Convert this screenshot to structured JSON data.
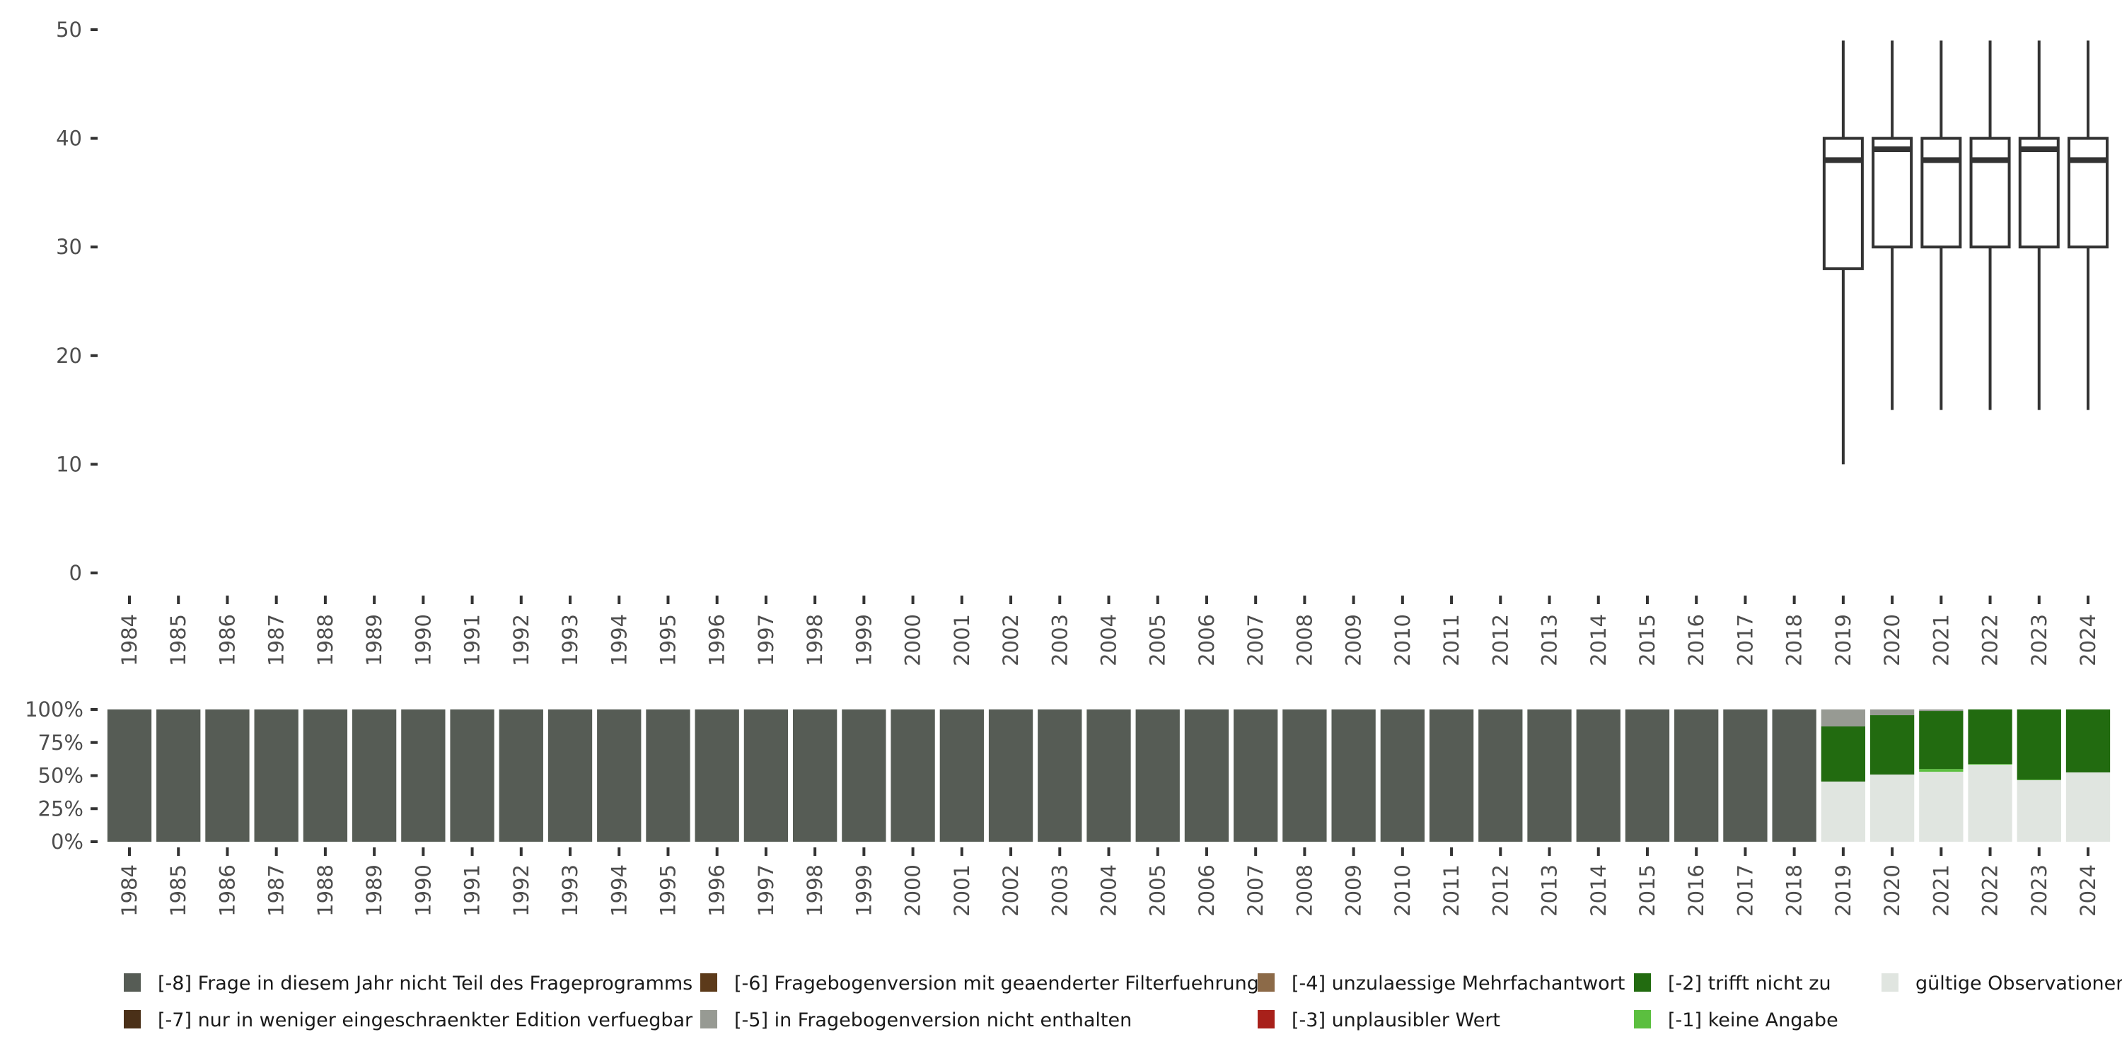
{
  "chart_data": [
    {
      "type": "boxplot",
      "title": "",
      "xlabel": "",
      "ylabel": "",
      "ylim": [
        0,
        50
      ],
      "yticks": [
        "0",
        "10",
        "20",
        "30",
        "40",
        "50"
      ],
      "grid": false,
      "categories": [
        "1984",
        "1985",
        "1986",
        "1987",
        "1988",
        "1989",
        "1990",
        "1991",
        "1992",
        "1993",
        "1994",
        "1995",
        "1996",
        "1997",
        "1998",
        "1999",
        "2000",
        "2001",
        "2002",
        "2003",
        "2004",
        "2005",
        "2006",
        "2007",
        "2008",
        "2009",
        "2010",
        "2011",
        "2012",
        "2013",
        "2014",
        "2015",
        "2016",
        "2017",
        "2018",
        "2019",
        "2020",
        "2021",
        "2022",
        "2023",
        "2024"
      ],
      "boxes": [
        {
          "year": "2019",
          "whisker_low": 10,
          "q1": 28,
          "median": 38,
          "q3": 40,
          "whisker_high": 49
        },
        {
          "year": "2020",
          "whisker_low": 15,
          "q1": 30,
          "median": 39,
          "q3": 40,
          "whisker_high": 49
        },
        {
          "year": "2021",
          "whisker_low": 15,
          "q1": 30,
          "median": 38,
          "q3": 40,
          "whisker_high": 49
        },
        {
          "year": "2022",
          "whisker_low": 15,
          "q1": 30,
          "median": 38,
          "q3": 40,
          "whisker_high": 49
        },
        {
          "year": "2023",
          "whisker_low": 15,
          "q1": 30,
          "median": 39,
          "q3": 40,
          "whisker_high": 49
        },
        {
          "year": "2024",
          "whisker_low": 15,
          "q1": 30,
          "median": 38,
          "q3": 40,
          "whisker_high": 49
        }
      ]
    },
    {
      "type": "bar",
      "stacked": true,
      "ylim": [
        0,
        100
      ],
      "yticks": [
        "0%",
        "25%",
        "50%",
        "75%",
        "100%"
      ],
      "categories": [
        "1984",
        "1985",
        "1986",
        "1987",
        "1988",
        "1989",
        "1990",
        "1991",
        "1992",
        "1993",
        "1994",
        "1995",
        "1996",
        "1997",
        "1998",
        "1999",
        "2000",
        "2001",
        "2002",
        "2003",
        "2004",
        "2005",
        "2006",
        "2007",
        "2008",
        "2009",
        "2010",
        "2011",
        "2012",
        "2013",
        "2014",
        "2015",
        "2016",
        "2017",
        "2018",
        "2019",
        "2020",
        "2021",
        "2022",
        "2023",
        "2024"
      ],
      "series": [
        {
          "key": "valid",
          "name": "gültige Observationen",
          "color": "#e0e5e0",
          "values": [
            0,
            0,
            0,
            0,
            0,
            0,
            0,
            0,
            0,
            0,
            0,
            0,
            0,
            0,
            0,
            0,
            0,
            0,
            0,
            0,
            0,
            0,
            0,
            0,
            0,
            0,
            0,
            0,
            0,
            0,
            0,
            0,
            0,
            0,
            0,
            45.5,
            50.8,
            52.9,
            58.3,
            46.5,
            52.4
          ]
        },
        {
          "key": "m1",
          "name": "[-1] keine Angabe",
          "color": "#5bbf3f",
          "values": [
            0,
            0,
            0,
            0,
            0,
            0,
            0,
            0,
            0,
            0,
            0,
            0,
            0,
            0,
            0,
            0,
            0,
            0,
            0,
            0,
            0,
            0,
            0,
            0,
            0,
            0,
            0,
            0,
            0,
            0,
            0,
            0,
            0,
            0,
            0,
            0,
            0,
            2.1,
            0.5,
            0.4,
            0
          ]
        },
        {
          "key": "m2",
          "name": "[-2] trifft nicht zu",
          "color": "#226b10",
          "values": [
            0,
            0,
            0,
            0,
            0,
            0,
            0,
            0,
            0,
            0,
            0,
            0,
            0,
            0,
            0,
            0,
            0,
            0,
            0,
            0,
            0,
            0,
            0,
            0,
            0,
            0,
            0,
            0,
            0,
            0,
            0,
            0,
            0,
            0,
            0,
            41.7,
            44.9,
            43.9,
            41.2,
            53.1,
            47.6
          ]
        },
        {
          "key": "m3",
          "name": "[-3] unplausibler Wert",
          "color": "#a8201a",
          "values": [
            0,
            0,
            0,
            0,
            0,
            0,
            0,
            0,
            0,
            0,
            0,
            0,
            0,
            0,
            0,
            0,
            0,
            0,
            0,
            0,
            0,
            0,
            0,
            0,
            0,
            0,
            0,
            0,
            0,
            0,
            0,
            0,
            0,
            0,
            0,
            0,
            0,
            0,
            0,
            0,
            0
          ]
        },
        {
          "key": "m4",
          "name": "[-4] unzulaessige Mehrfachantwort",
          "color": "#8c6a48",
          "values": [
            0,
            0,
            0,
            0,
            0,
            0,
            0,
            0,
            0,
            0,
            0,
            0,
            0,
            0,
            0,
            0,
            0,
            0,
            0,
            0,
            0,
            0,
            0,
            0,
            0,
            0,
            0,
            0,
            0,
            0,
            0,
            0,
            0,
            0,
            0,
            0,
            0,
            0,
            0,
            0,
            0
          ]
        },
        {
          "key": "m5",
          "name": "[-5] in Fragebogenversion nicht enthalten",
          "color": "#979a93",
          "values": [
            0,
            0,
            0,
            0,
            0,
            0,
            0,
            0,
            0,
            0,
            0,
            0,
            0,
            0,
            0,
            0,
            0,
            0,
            0,
            0,
            0,
            0,
            0,
            0,
            0,
            0,
            0,
            0,
            0,
            0,
            0,
            0,
            0,
            0,
            0,
            12.8,
            4.3,
            1.1,
            0,
            0,
            0
          ]
        },
        {
          "key": "m6",
          "name": "[-6] Fragebogenversion mit geaenderter Filterfuehrung",
          "color": "#5c3a1a",
          "values": [
            0,
            0,
            0,
            0,
            0,
            0,
            0,
            0,
            0,
            0,
            0,
            0,
            0,
            0,
            0,
            0,
            0,
            0,
            0,
            0,
            0,
            0,
            0,
            0,
            0,
            0,
            0,
            0,
            0,
            0,
            0,
            0,
            0,
            0,
            0,
            0,
            0,
            0,
            0,
            0,
            0
          ]
        },
        {
          "key": "m7",
          "name": "[-7] nur in weniger eingeschraenkter Edition verfuegbar",
          "color": "#4a3018",
          "values": [
            0,
            0,
            0,
            0,
            0,
            0,
            0,
            0,
            0,
            0,
            0,
            0,
            0,
            0,
            0,
            0,
            0,
            0,
            0,
            0,
            0,
            0,
            0,
            0,
            0,
            0,
            0,
            0,
            0,
            0,
            0,
            0,
            0,
            0,
            0,
            0,
            0,
            0,
            0,
            0,
            0
          ]
        },
        {
          "key": "m8",
          "name": "[-8] Frage in diesem Jahr nicht Teil des Frageprogramms",
          "color": "#565c55",
          "values": [
            100,
            100,
            100,
            100,
            100,
            100,
            100,
            100,
            100,
            100,
            100,
            100,
            100,
            100,
            100,
            100,
            100,
            100,
            100,
            100,
            100,
            100,
            100,
            100,
            100,
            100,
            100,
            100,
            100,
            100,
            100,
            100,
            100,
            100,
            100,
            0,
            0,
            0,
            0,
            0,
            0
          ]
        }
      ],
      "legend_position": "bottom",
      "legend_order": [
        "m8",
        "m6",
        "m4",
        "m2",
        "valid",
        "m7",
        "m5",
        "m3",
        "m1"
      ]
    }
  ]
}
